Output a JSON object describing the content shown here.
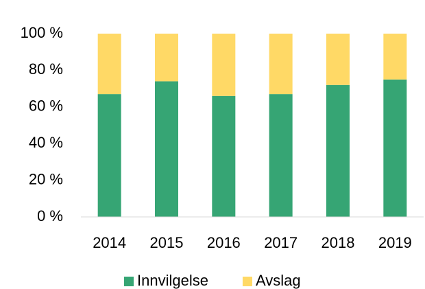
{
  "chart_data": {
    "type": "stacked_bar",
    "categories": [
      "2014",
      "2015",
      "2016",
      "2017",
      "2018",
      "2019"
    ],
    "series": [
      {
        "name": "Innvilgelse",
        "color": "#36a574",
        "values": [
          67,
          74,
          66,
          67,
          72,
          75
        ]
      },
      {
        "name": "Avslag",
        "color": "#ffd966",
        "values": [
          33,
          26,
          34,
          33,
          28,
          25
        ]
      }
    ],
    "ylim": [
      0,
      100
    ],
    "yticks": [
      {
        "value": 0,
        "label": "0 %"
      },
      {
        "value": 20,
        "label": "20 %"
      },
      {
        "value": 40,
        "label": "40 %"
      },
      {
        "value": 60,
        "label": "60 %"
      },
      {
        "value": 80,
        "label": "80 %"
      },
      {
        "value": 100,
        "label": "100 %"
      }
    ],
    "grid": false,
    "legend": "bottom"
  }
}
